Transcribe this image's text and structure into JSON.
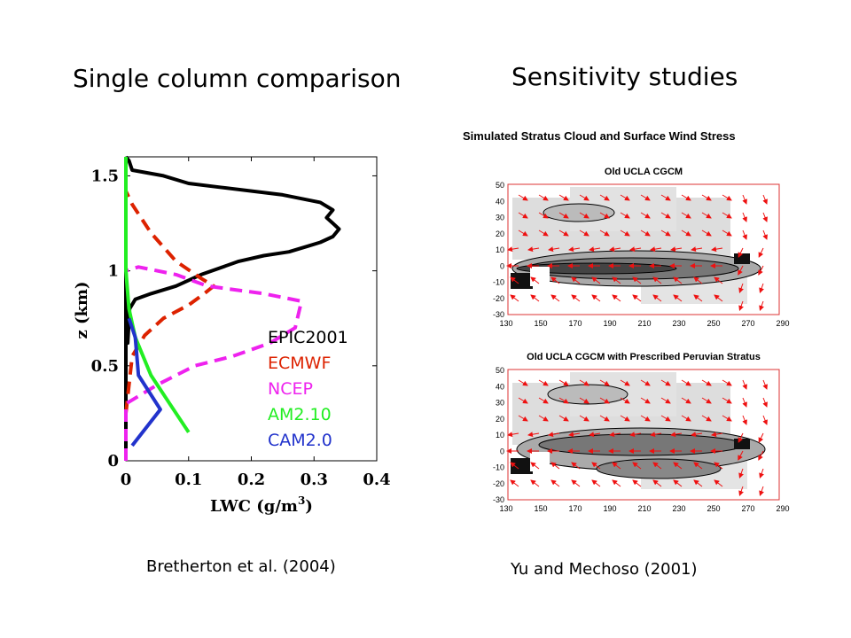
{
  "slide": {
    "left_title": "Single column comparison",
    "right_title": "Sensitivity studies",
    "left_caption": "Bretherton et al. (2004)",
    "right_caption": "Yu and Mechoso (2001)"
  },
  "colors": {
    "epic": "#000000",
    "ecmwf": "#dd2200",
    "ncep": "#ee22ee",
    "am": "#22ee22",
    "cam": "#2233cc",
    "arrow": "#ee1111",
    "map_border": "#dd3333"
  },
  "chart_data": [
    {
      "type": "line",
      "title": "Single column comparison",
      "xlabel": "LWC (g/m",
      "xlabel_sup": "3",
      "xlabel_close": ")",
      "ylabel": "z (km)",
      "xlim": [
        0,
        0.4
      ],
      "ylim": [
        0,
        1.6
      ],
      "xticks": [
        0,
        0.1,
        0.2,
        0.3,
        0.4
      ],
      "xtick_labels": [
        "0",
        "0.1",
        "0.2",
        "0.3",
        "0.4"
      ],
      "yticks": [
        0,
        0.5,
        1,
        1.5
      ],
      "ytick_labels": [
        "0",
        "0.5",
        "1",
        "1.5"
      ],
      "series": [
        {
          "name": "EPIC2001",
          "color": "#000000",
          "dash": false,
          "points": [
            [
              0,
              0
            ],
            [
              0,
              1.0
            ],
            [
              0.003,
              0.62
            ],
            [
              0.006,
              0.8
            ],
            [
              0.015,
              0.85
            ],
            [
              0.04,
              0.88
            ],
            [
              0.08,
              0.92
            ],
            [
              0.12,
              0.98
            ],
            [
              0.18,
              1.05
            ],
            [
              0.22,
              1.08
            ],
            [
              0.26,
              1.1
            ],
            [
              0.29,
              1.13
            ],
            [
              0.31,
              1.15
            ],
            [
              0.33,
              1.18
            ],
            [
              0.34,
              1.22
            ],
            [
              0.33,
              1.25
            ],
            [
              0.32,
              1.28
            ],
            [
              0.33,
              1.32
            ],
            [
              0.31,
              1.36
            ],
            [
              0.28,
              1.38
            ],
            [
              0.25,
              1.4
            ],
            [
              0.15,
              1.44
            ],
            [
              0.1,
              1.46
            ],
            [
              0.06,
              1.5
            ],
            [
              0.01,
              1.53
            ],
            [
              0.005,
              1.58
            ],
            [
              0,
              1.6
            ]
          ]
        },
        {
          "name": "ECMWF",
          "color": "#dd2200",
          "dash": true,
          "points": [
            [
              0,
              0.25
            ],
            [
              0.01,
              0.55
            ],
            [
              0.03,
              0.66
            ],
            [
              0.06,
              0.75
            ],
            [
              0.1,
              0.82
            ],
            [
              0.125,
              0.88
            ],
            [
              0.14,
              0.92
            ],
            [
              0.12,
              0.96
            ],
            [
              0.08,
              1.05
            ],
            [
              0.04,
              1.2
            ],
            [
              0.01,
              1.35
            ],
            [
              0,
              1.42
            ]
          ]
        },
        {
          "name": "NCEP",
          "color": "#ee22ee",
          "dash": true,
          "points": [
            [
              0,
              0
            ],
            [
              0,
              0.3
            ],
            [
              0.05,
              0.4
            ],
            [
              0.11,
              0.5
            ],
            [
              0.17,
              0.55
            ],
            [
              0.23,
              0.62
            ],
            [
              0.27,
              0.7
            ],
            [
              0.28,
              0.84
            ],
            [
              0.22,
              0.88
            ],
            [
              0.13,
              0.92
            ],
            [
              0.08,
              0.98
            ],
            [
              0.02,
              1.02
            ],
            [
              0,
              1.0
            ],
            [
              0,
              1.6
            ]
          ]
        },
        {
          "name": "AM2.10",
          "color": "#22ee22",
          "dash": false,
          "points": [
            [
              0.1,
              0.15
            ],
            [
              0.07,
              0.3
            ],
            [
              0.04,
              0.45
            ],
            [
              0.015,
              0.65
            ],
            [
              0.005,
              0.8
            ],
            [
              0,
              1.0
            ],
            [
              0,
              1.6
            ]
          ]
        },
        {
          "name": "CAM2.0",
          "color": "#2233cc",
          "dash": false,
          "points": [
            [
              0.01,
              0.08
            ],
            [
              0.055,
              0.27
            ],
            [
              0.02,
              0.45
            ],
            [
              0.015,
              0.65
            ],
            [
              0.005,
              0.75
            ]
          ]
        }
      ],
      "legend": [
        "EPIC2001",
        "ECMWF",
        "NCEP",
        "AM2.10",
        "CAM2.0"
      ],
      "legend_position": "lower-right"
    },
    {
      "type": "heatmap",
      "title": "Simulated Stratus Cloud and Surface Wind Stress",
      "panels": [
        {
          "title": "Old UCLA CGCM",
          "grey_level": 0
        },
        {
          "title": "Old UCLA CGCM with Prescribed Peruvian Stratus",
          "grey_level": 1
        }
      ],
      "xticks": [
        "130",
        "150",
        "170",
        "190",
        "210",
        "230",
        "250",
        "270",
        "290"
      ],
      "yticks": [
        "50",
        "40",
        "30",
        "20",
        "10",
        "0",
        "-10",
        "-20",
        "-30"
      ]
    }
  ]
}
